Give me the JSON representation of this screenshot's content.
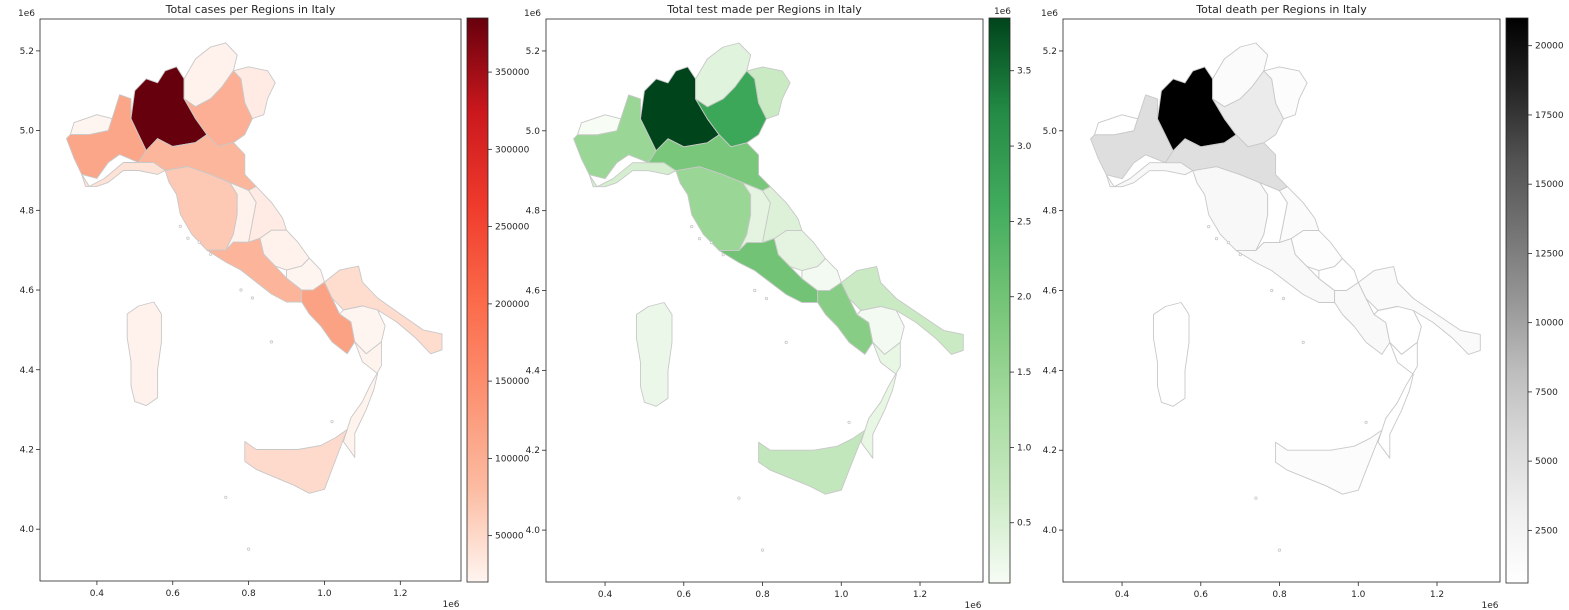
{
  "figure": {
    "axis_x": {
      "range": [
        0.25,
        1.36
      ],
      "ticks": [
        0.4,
        0.6,
        0.8,
        1.0,
        1.2
      ],
      "tick_labels": [
        "0.4",
        "0.6",
        "0.8",
        "1.0",
        "1.2"
      ],
      "multiplier": "1e6"
    },
    "axis_y": {
      "range": [
        3.87,
        5.28
      ],
      "ticks": [
        4.0,
        4.2,
        4.4,
        4.6,
        4.8,
        5.0,
        5.2
      ],
      "tick_labels": [
        "4.0",
        "4.2",
        "4.4",
        "4.6",
        "4.8",
        "5.0",
        "5.2"
      ],
      "multiplier": "1e6"
    }
  },
  "chart_data": [
    {
      "type": "choropleth",
      "title": "Total cases per Regions in Italy",
      "colormap": "Reds",
      "colormap_stops": [
        "#fff5f0",
        "#fcbba1",
        "#fc9272",
        "#fb6a4a",
        "#ef3b2c",
        "#cb181d",
        "#67000d"
      ],
      "colorbar": {
        "range": [
          20000,
          385000
        ],
        "ticks": [
          50000,
          100000,
          150000,
          200000,
          250000,
          300000,
          350000
        ],
        "tick_labels": [
          "50000",
          "100000",
          "150000",
          "200000",
          "250000",
          "300000",
          "350000"
        ],
        "multiplier": ""
      },
      "values": {
        "Lombardia": 385000,
        "Piemonte": 112000,
        "Veneto": 98000,
        "Emilia-Romagna": 88000,
        "Campania": 118000,
        "Lazio": 90000,
        "Toscana": 66000,
        "Sicilia": 48000,
        "Puglia": 46000,
        "Liguria": 40000,
        "Marche": 30000,
        "Friuli Venezia Giulia": 30000,
        "Abruzzo": 24000,
        "Trentino-Alto Adige": 24000,
        "Umbria": 24000,
        "Sardegna": 24000,
        "Calabria": 22000,
        "Basilicata": 20000,
        "Molise": 20000,
        "Valle d'Aosta": 20000
      }
    },
    {
      "type": "choropleth",
      "title": "Total test made per Regions in Italy",
      "colormap": "Greens",
      "colormap_stops": [
        "#f7fcf5",
        "#c7e9c0",
        "#a1d99b",
        "#74c476",
        "#41ab5d",
        "#238b45",
        "#00441b"
      ],
      "colorbar": {
        "range": [
          0.1,
          3.85
        ],
        "ticks": [
          0.5,
          1.0,
          1.5,
          2.0,
          2.5,
          3.0,
          3.5
        ],
        "tick_labels": [
          "0.5",
          "1.0",
          "1.5",
          "2.0",
          "2.5",
          "3.0",
          "3.5"
        ],
        "multiplier": "1e6"
      },
      "values": {
        "Lombardia": 3.85,
        "Veneto": 2.7,
        "Lazio": 2.0,
        "Emilia-Romagna": 1.9,
        "Campania": 1.7,
        "Piemonte": 1.45,
        "Toscana": 1.45,
        "Sicilia": 0.8,
        "Puglia": 0.7,
        "Friuli Venezia Giulia": 0.7,
        "Liguria": 0.55,
        "Marche": 0.45,
        "Trentino-Alto Adige": 0.4,
        "Abruzzo": 0.35,
        "Umbria": 0.35,
        "Calabria": 0.3,
        "Sardegna": 0.25,
        "Basilicata": 0.15,
        "Molise": 0.15,
        "Valle d'Aosta": 0.1
      }
    },
    {
      "type": "choropleth",
      "title": "Total death per Regions in Italy",
      "colormap": "Greys",
      "colormap_stops": [
        "#ffffff",
        "#f0f0f0",
        "#d9d9d9",
        "#bdbdbd",
        "#969696",
        "#737373",
        "#525252",
        "#252525",
        "#000000"
      ],
      "colorbar": {
        "range": [
          600,
          21000
        ],
        "ticks": [
          2500,
          5000,
          7500,
          10000,
          12500,
          15000,
          17500,
          20000
        ],
        "tick_labels": [
          "2500",
          "5000",
          "7500",
          "10000",
          "12500",
          "15000",
          "17500",
          "20000"
        ],
        "multiplier": ""
      },
      "values": {
        "Lombardia": 21000,
        "Piemonte": 5200,
        "Emilia-Romagna": 5000,
        "Veneto": 3700,
        "Liguria": 1800,
        "Toscana": 1800,
        "Lazio": 1600,
        "Campania": 1600,
        "Puglia": 1400,
        "Marche": 1200,
        "Trentino-Alto Adige": 1200,
        "Friuli Venezia Giulia": 1100,
        "Sicilia": 1100,
        "Abruzzo": 900,
        "Sardegna": 650,
        "Umbria": 600,
        "Calabria": 600,
        "Valle d'Aosta": 600,
        "Basilicata": 600,
        "Molise": 600
      }
    }
  ]
}
